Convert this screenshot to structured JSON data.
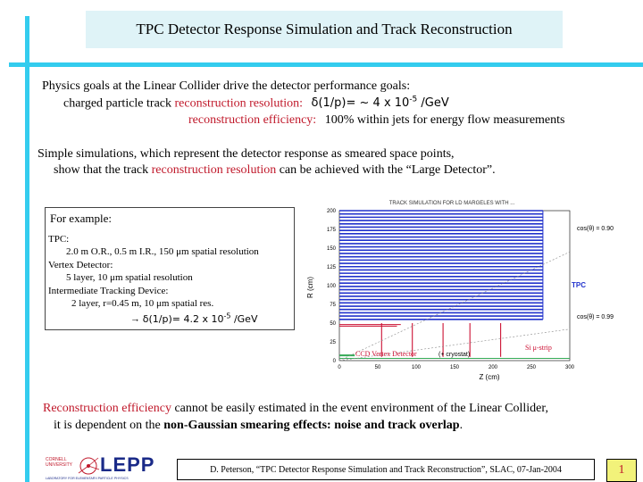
{
  "title": "TPC Detector Response Simulation and Track Reconstruction",
  "goals": {
    "line1": "Physics goals at the Linear Collider drive the detector performance goals:",
    "line2_pre": "charged particle track ",
    "line2_red": "reconstruction resolution:",
    "line2_formula": "δ(1/p)= ~ 4 x 10",
    "line2_exp": "-5",
    "line2_unit": " /GeV",
    "line3_red": "reconstruction efficiency:",
    "line3_rest": "100% within jets for energy flow measurements"
  },
  "sims": {
    "line1": "Simple simulations, which represent the detector response as smeared space points,",
    "line2_pre": "show that the track ",
    "line2_red": "reconstruction resolution",
    "line2_post": " can be achieved with the “Large Detector”."
  },
  "example": {
    "lead": "For example:",
    "l1": "TPC:",
    "l2": "2.0 m O.R., 0.5 m I.R., 150 μm spatial resolution",
    "l3": "Vertex Detector:",
    "l4": "5 layer, 10 μm spatial resolution",
    "l5": "Intermediate Tracking Device:",
    "l6": "2 layer, r=0.45 m, 10 μm spatial res.",
    "l7_arrow": "→ ",
    "l7_formula": "δ(1/p)= 4.2 x 10",
    "l7_exp": "-5",
    "l7_unit": " /GeV"
  },
  "chart_data": {
    "type": "diagram",
    "title": "TRACK SIMULATION FOR LD MARGELES WITH ...",
    "ylabel": "R (cm)",
    "xlabel": "Z (cm)",
    "xticks": [
      "0",
      "50",
      "100",
      "150",
      "200",
      "250",
      "300"
    ],
    "yticks": [
      "0",
      "25",
      "50",
      "75",
      "100",
      "125",
      "150",
      "175",
      "200"
    ],
    "xlim": [
      0,
      300
    ],
    "ylim": [
      0,
      200
    ],
    "annotations": {
      "cos90": "cos(θ) = 0.90",
      "cos99": "cos(θ) = 0.99",
      "tpc": "TPC",
      "si": "Si μ-strip",
      "ccd": "CCD Vertex Detector",
      "crystat": "(+ cryostat)"
    },
    "tpc_region": {
      "r_min": 55,
      "r_max": 200,
      "z_max": 265
    },
    "colors": {
      "tpc": "#2233cc",
      "si": "#cc1133",
      "ccd": "#cc1133",
      "vertex": "#33aa55",
      "beam": "#000000"
    }
  },
  "efficiency": {
    "red": "Reconstruction efficiency",
    "rest": " cannot be easily estimated in the event environment of the Linear Collider,",
    "line2_pre": "it is dependent on the ",
    "line2_bold": "non-Gaussian smearing effects: noise and track overlap",
    "line2_post": "."
  },
  "footer": {
    "logo_text": "LEPP",
    "logo_small1": "CORNELL",
    "logo_small2": "UNIVERSITY",
    "logo_small3": "LABORATORY FOR ELEMENTARY-PARTICLE PHYSICS",
    "citation": "D. Peterson, “TPC Detector Response Simulation and Track Reconstruction”, SLAC, 07-Jan-2004",
    "page": "1"
  }
}
